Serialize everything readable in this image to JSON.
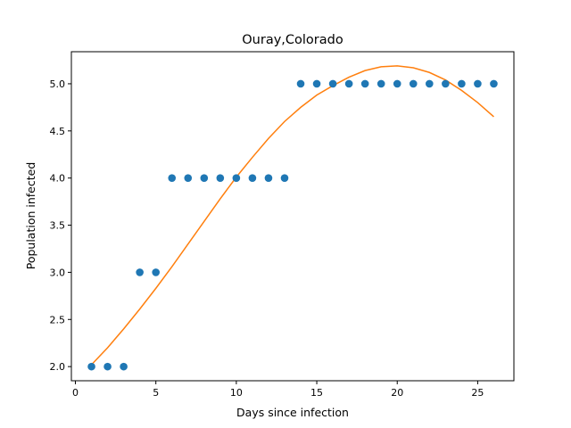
{
  "chart_data": {
    "type": "scatter",
    "title": "Ouray,Colorado",
    "xlabel": "Days since infection",
    "ylabel": "Population infected",
    "xlim": [
      -0.25,
      27.25
    ],
    "ylim": [
      1.85,
      5.34
    ],
    "xticks": [
      0,
      5,
      10,
      15,
      20,
      25
    ],
    "xtick_labels": [
      "0",
      "5",
      "10",
      "15",
      "20",
      "25"
    ],
    "yticks": [
      2.0,
      2.5,
      3.0,
      3.5,
      4.0,
      4.5,
      5.0
    ],
    "ytick_labels": [
      "2.0",
      "2.5",
      "3.0",
      "3.5",
      "4.0",
      "4.5",
      "5.0"
    ],
    "grid": false,
    "series": [
      {
        "kind": "scatter",
        "color": "#1f77b4",
        "x": [
          1,
          2,
          3,
          4,
          5,
          6,
          7,
          8,
          9,
          10,
          11,
          12,
          13,
          14,
          15,
          16,
          17,
          18,
          19,
          20,
          21,
          22,
          23,
          24,
          25,
          26
        ],
        "y": [
          2,
          2,
          2,
          3,
          3,
          4,
          4,
          4,
          4,
          4,
          4,
          4,
          4,
          5,
          5,
          5,
          5,
          5,
          5,
          5,
          5,
          5,
          5,
          5,
          5,
          5
        ]
      },
      {
        "kind": "line",
        "color": "#ff7f0e",
        "x": [
          1,
          2,
          3,
          4,
          5,
          6,
          7,
          8,
          9,
          10,
          11,
          12,
          13,
          14,
          15,
          16,
          17,
          18,
          19,
          20,
          21,
          22,
          23,
          24,
          25,
          26
        ],
        "y": [
          2.02,
          2.2,
          2.4,
          2.61,
          2.83,
          3.06,
          3.3,
          3.54,
          3.78,
          4.01,
          4.22,
          4.42,
          4.6,
          4.75,
          4.88,
          4.98,
          5.07,
          5.14,
          5.18,
          5.19,
          5.17,
          5.12,
          5.04,
          4.93,
          4.8,
          4.65
        ]
      }
    ]
  }
}
